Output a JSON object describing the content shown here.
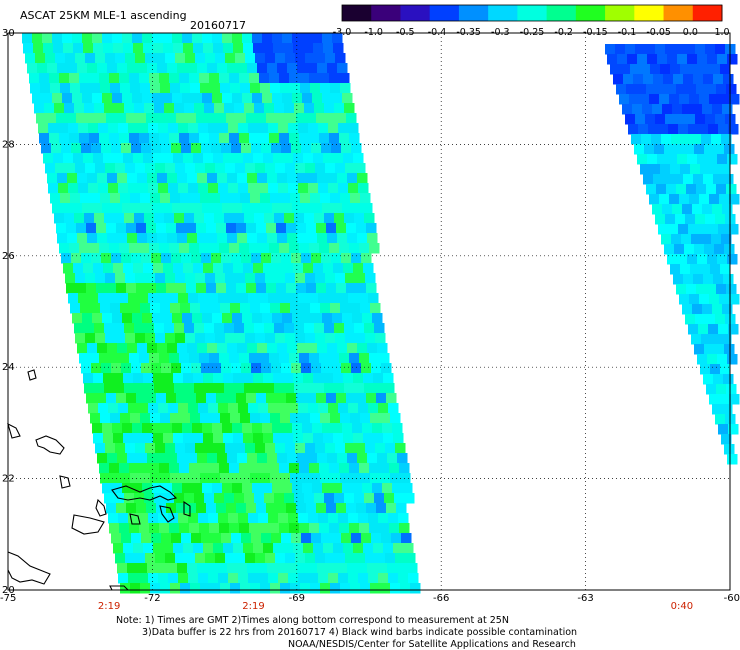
{
  "header": {
    "title": "ASCAT 25KM MLE-1 ascending",
    "date": "20160717"
  },
  "colorbar": {
    "labels": [
      "-3.0",
      "-1.0",
      "-0.5",
      "-0.4",
      "-0.35",
      "-0.3",
      "-0.25",
      "-0.2",
      "-0.15",
      "-0.1",
      "-0.05",
      "0.0",
      "1.0"
    ],
    "colors": [
      "#1a0030",
      "#3a007a",
      "#2a10c0",
      "#0040ff",
      "#0090ff",
      "#00d8ff",
      "#00ffe0",
      "#00ff90",
      "#20ff20",
      "#a0ff00",
      "#ffff00",
      "#ff9000",
      "#ff2000"
    ]
  },
  "map": {
    "lon_labels": [
      "-75",
      "-72",
      "-69",
      "-66",
      "-63",
      "-60"
    ],
    "lat_labels": [
      "30",
      "28",
      "26",
      "24",
      "22",
      "20"
    ],
    "time_labels": [
      {
        "lon": -72.9,
        "text": "2:19"
      },
      {
        "lon": -69.9,
        "text": "2:19"
      },
      {
        "lon": -61.0,
        "text": "0:40"
      }
    ],
    "time_color": "#cc2200",
    "lon_range": [
      -75,
      -60
    ],
    "lat_range": [
      20,
      30
    ],
    "data_color_dominant": "#00ffff"
  },
  "footer": {
    "note_line1": "Note: 1) Times are GMT 2)Times along bottom correspond to measurement at 25N",
    "note_line2": "3)Data buffer is 22 hrs from 20160717 4) Black wind barbs indicate possible contamination",
    "note_line3": "NOAA/NESDIS/Center for Satellite Applications and Research"
  }
}
